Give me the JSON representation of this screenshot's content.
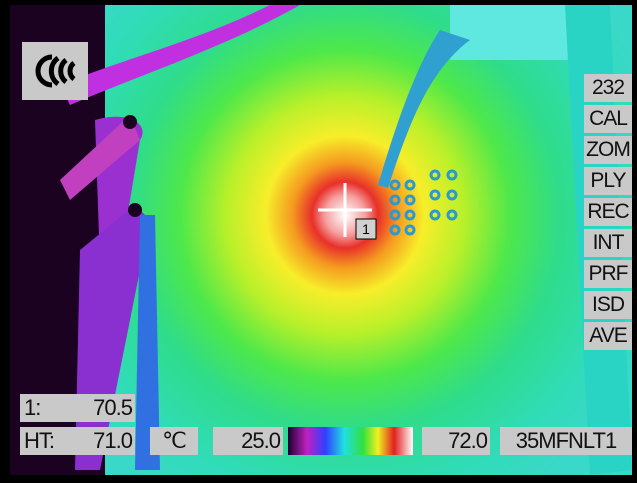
{
  "menu": [
    "232",
    "CAL",
    "ZOM",
    "PLY",
    "REC",
    "INT",
    "PRF",
    "ISD",
    "AVE"
  ],
  "readouts": {
    "spot_label": "1:",
    "spot_value": "70.5",
    "ht_label": "HT:",
    "ht_value": "71.0"
  },
  "scale": {
    "unit": "℃",
    "min": "25.0",
    "max": "72.0"
  },
  "mode": "35MFNLT1",
  "marker": "1"
}
